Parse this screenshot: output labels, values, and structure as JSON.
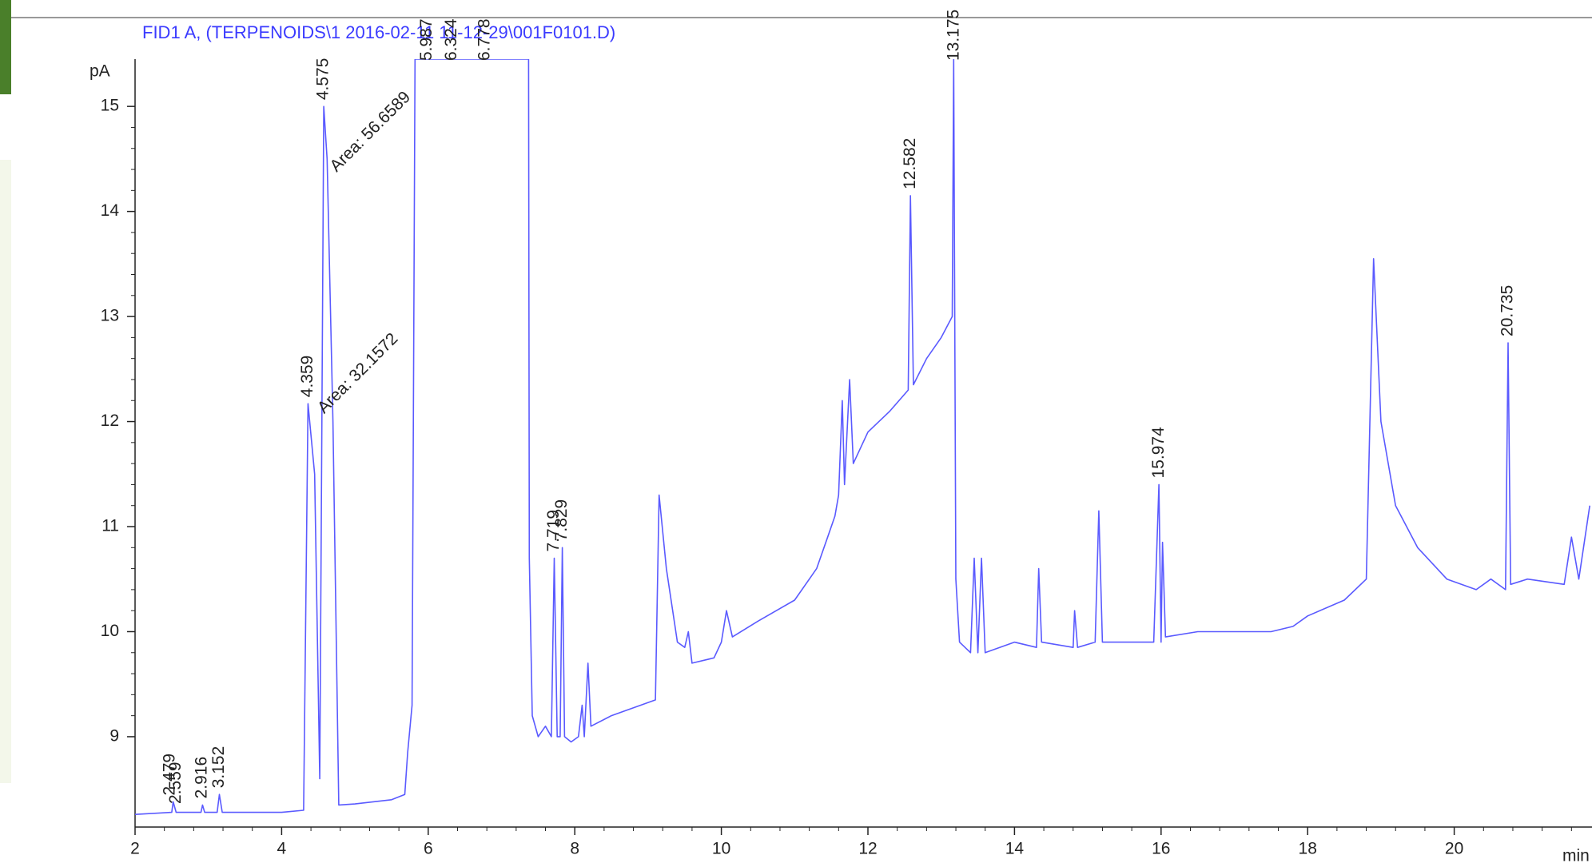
{
  "chart_data": {
    "type": "line",
    "title": "FID1 A,  (TERPENOIDS\\1 2016-02-11 11-12-29\\001F0101.D)",
    "x_label": "min",
    "y_label": "pA",
    "x": [
      2.0,
      2.5,
      2.52,
      2.56,
      2.9,
      2.92,
      2.95,
      3.12,
      3.15,
      3.19,
      4.0,
      4.3,
      4.36,
      4.45,
      4.52,
      4.575,
      4.62,
      4.7,
      4.78,
      5.0,
      5.5,
      5.68,
      5.72,
      5.78,
      5.82,
      7.33,
      7.37,
      7.38,
      7.42,
      7.5,
      7.6,
      7.68,
      7.72,
      7.76,
      7.8,
      7.83,
      7.86,
      7.95,
      8.05,
      8.1,
      8.13,
      8.18,
      8.22,
      8.5,
      8.9,
      9.1,
      9.15,
      9.25,
      9.4,
      9.5,
      9.55,
      9.6,
      9.9,
      10.0,
      10.07,
      10.15,
      10.5,
      11.0,
      11.3,
      11.45,
      11.55,
      11.6,
      11.65,
      11.68,
      11.75,
      11.8,
      12.0,
      12.3,
      12.55,
      12.58,
      12.62,
      12.8,
      13.0,
      13.15,
      13.17,
      13.2,
      13.25,
      13.4,
      13.45,
      13.5,
      13.55,
      13.6,
      14.0,
      14.3,
      14.33,
      14.37,
      14.8,
      14.82,
      14.86,
      15.1,
      15.15,
      15.2,
      15.9,
      15.97,
      16.0,
      16.02,
      16.06,
      16.5,
      17.0,
      17.5,
      17.8,
      18.0,
      18.5,
      18.8,
      18.9,
      19.0,
      19.2,
      19.5,
      19.9,
      20.3,
      20.5,
      20.7,
      20.735,
      20.77,
      21.0,
      21.5,
      21.6,
      21.7,
      21.85
    ],
    "series": [
      {
        "name": "FID1 A",
        "color": "#5a5aff",
        "values": [
          8.26,
          8.28,
          8.38,
          8.28,
          8.28,
          8.35,
          8.28,
          8.28,
          8.45,
          8.28,
          8.28,
          8.3,
          12.17,
          11.5,
          8.6,
          15.0,
          14.5,
          12.0,
          8.35,
          8.36,
          8.4,
          8.45,
          8.85,
          9.3,
          15.45,
          15.45,
          15.45,
          10.7,
          9.2,
          9.0,
          9.1,
          9.0,
          10.7,
          9.0,
          9.0,
          10.8,
          9.0,
          8.95,
          9.0,
          9.3,
          9.0,
          9.7,
          9.1,
          9.2,
          9.3,
          9.35,
          11.3,
          10.6,
          9.9,
          9.85,
          10.0,
          9.7,
          9.75,
          9.9,
          10.2,
          9.95,
          10.1,
          10.3,
          10.6,
          10.9,
          11.1,
          11.3,
          12.2,
          11.4,
          12.4,
          11.6,
          11.9,
          12.1,
          12.3,
          14.15,
          12.35,
          12.6,
          12.8,
          13.0,
          15.45,
          10.5,
          9.9,
          9.8,
          10.7,
          9.8,
          10.7,
          9.8,
          9.9,
          9.85,
          10.6,
          9.9,
          9.85,
          10.2,
          9.85,
          9.9,
          11.15,
          9.9,
          9.9,
          11.4,
          9.9,
          10.85,
          9.95,
          10.0,
          10.0,
          10.0,
          10.05,
          10.15,
          10.3,
          10.5,
          13.55,
          12.0,
          11.2,
          10.8,
          10.5,
          10.4,
          10.5,
          10.4,
          12.75,
          10.45,
          10.5,
          10.45,
          10.9,
          10.5,
          11.2
        ]
      }
    ],
    "peak_labels": [
      {
        "text": "2.479",
        "x": 2.479,
        "y": 8.38
      },
      {
        "text": "2.559",
        "x": 2.559,
        "y": 8.3
      },
      {
        "text": "2.916",
        "x": 2.916,
        "y": 8.35
      },
      {
        "text": "3.152",
        "x": 3.152,
        "y": 8.45
      },
      {
        "text": "4.359",
        "x": 4.359,
        "y": 12.17
      },
      {
        "text": "4.575",
        "x": 4.575,
        "y": 15.0
      },
      {
        "text": "5.987",
        "x": 5.987,
        "y": 15.45
      },
      {
        "text": "6.324",
        "x": 6.324,
        "y": 15.45
      },
      {
        "text": "6.778",
        "x": 6.778,
        "y": 15.45
      },
      {
        "text": "7.719",
        "x": 7.719,
        "y": 10.7
      },
      {
        "text": "7.829",
        "x": 7.829,
        "y": 10.8
      },
      {
        "text": "12.582",
        "x": 12.582,
        "y": 14.15
      },
      {
        "text": "13.175",
        "x": 13.175,
        "y": 15.45
      },
      {
        "text": "15.974",
        "x": 15.974,
        "y": 11.4
      },
      {
        "text": "20.735",
        "x": 20.735,
        "y": 12.75
      }
    ],
    "area_labels": [
      {
        "text": "Area: 56.6589",
        "x": 4.62,
        "y": 14.4
      },
      {
        "text": "Area: 32.1572",
        "x": 4.45,
        "y": 12.1
      }
    ],
    "xlim": [
      2,
      21.88
    ],
    "ylim": [
      8.14,
      15.45
    ],
    "xticks": [
      2,
      4,
      6,
      8,
      10,
      12,
      14,
      16,
      18,
      20
    ],
    "yticks": [
      9,
      10,
      11,
      12,
      13,
      14,
      15
    ]
  }
}
